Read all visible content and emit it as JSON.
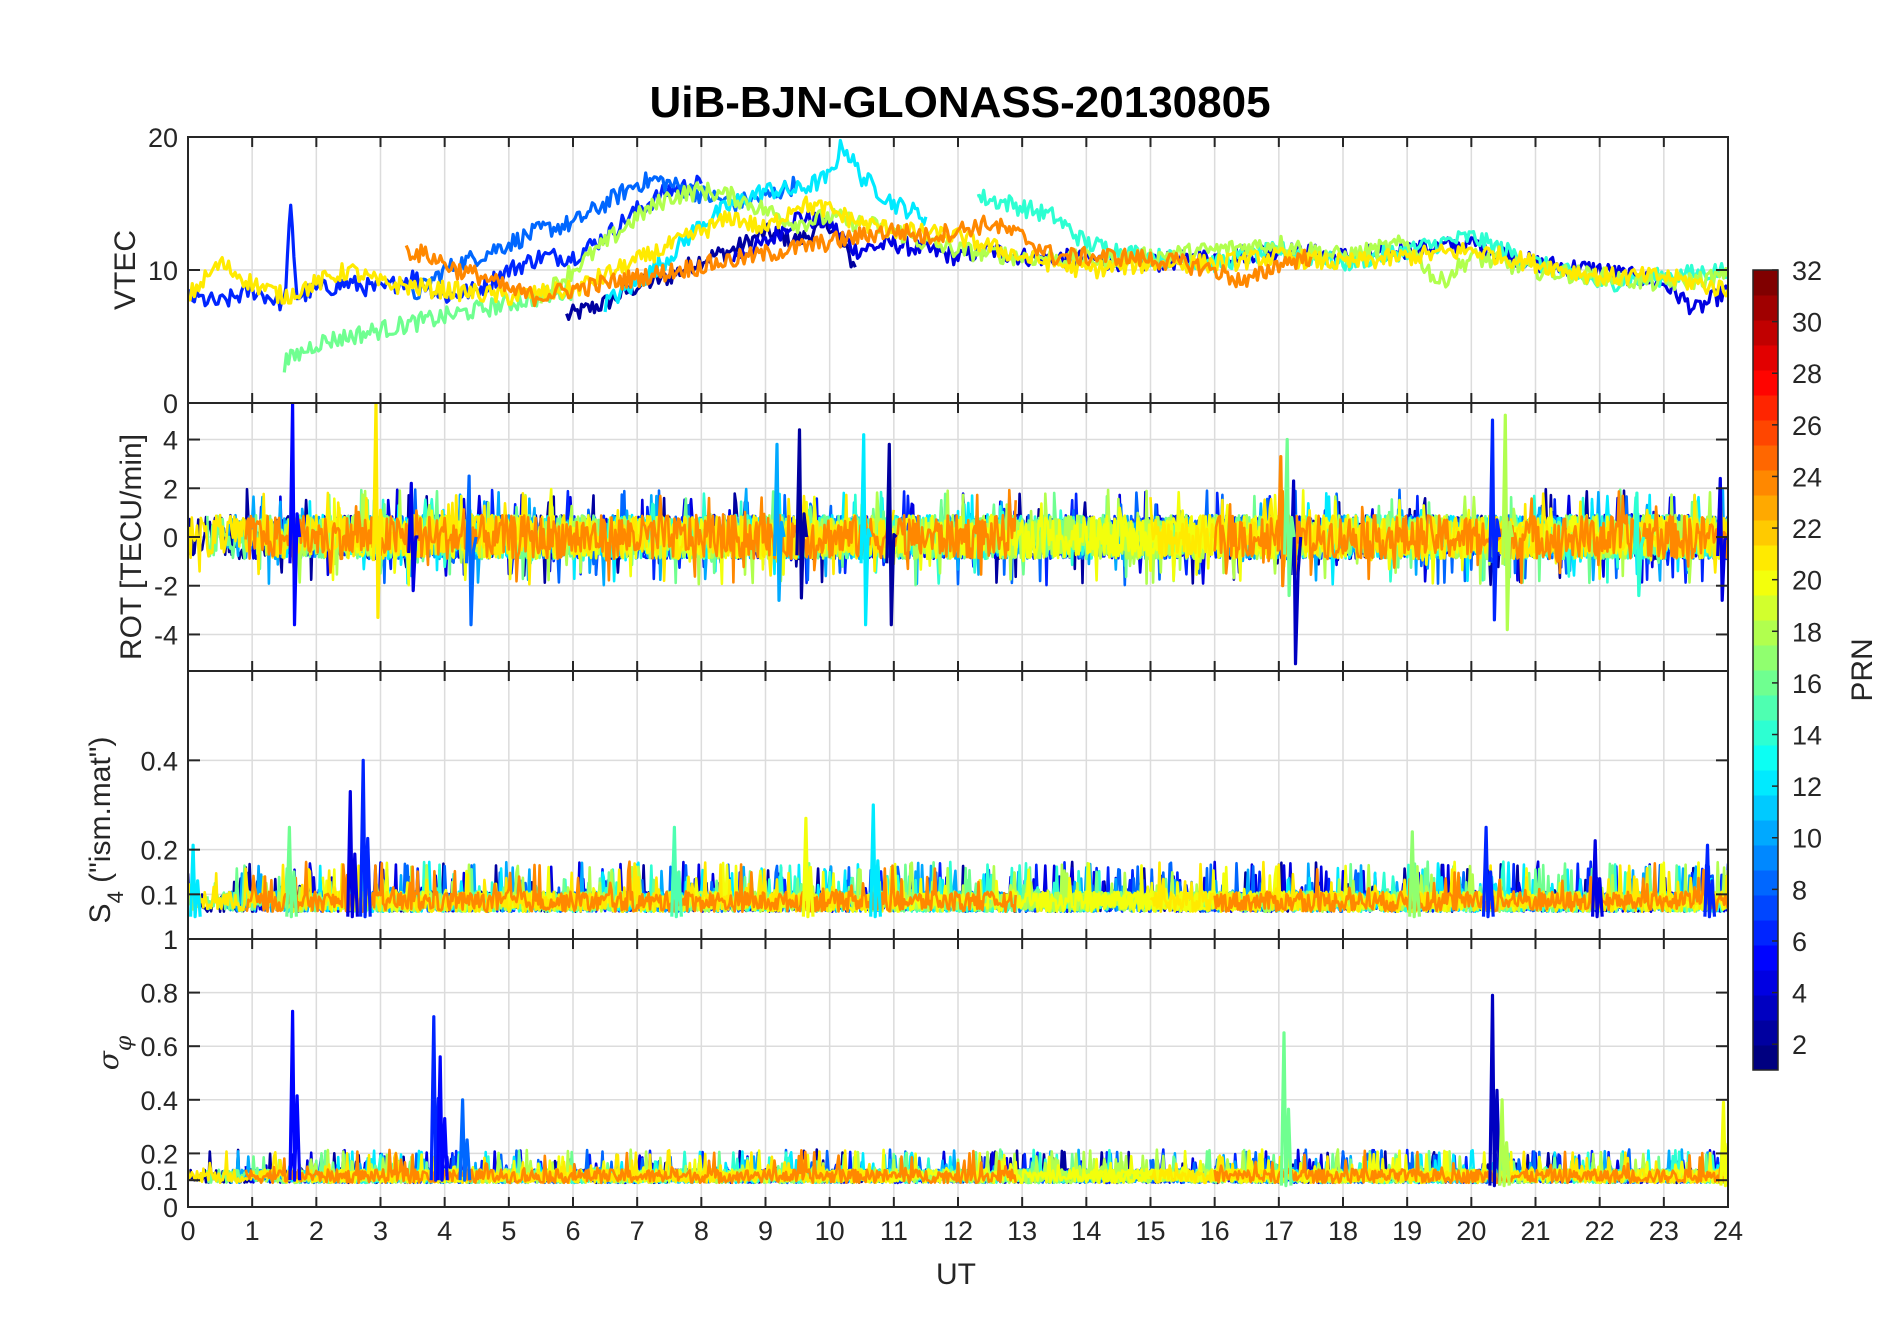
{
  "chart_data": {
    "type": "line",
    "title": "UiB-BJN-GLONASS-20130805",
    "xlabel": "UT",
    "xlim": [
      0,
      24
    ],
    "x_ticks": [
      0,
      1,
      2,
      3,
      4,
      5,
      6,
      7,
      8,
      9,
      10,
      11,
      12,
      13,
      14,
      15,
      16,
      17,
      18,
      19,
      20,
      21,
      22,
      23,
      24
    ],
    "grid": true,
    "colorbar": {
      "label": "PRN",
      "range": [
        1,
        32
      ],
      "colormap": "jet",
      "ticks": [
        2,
        4,
        6,
        8,
        10,
        12,
        14,
        16,
        18,
        20,
        22,
        24,
        26,
        28,
        30,
        32
      ]
    },
    "panels": [
      {
        "ylabel": "VTEC",
        "ylim": [
          0,
          20
        ],
        "y_ticks": [
          10,
          20
        ],
        "traces": [
          {
            "prn": 2,
            "x": [
              5.9,
              6.5,
              7.0,
              7.5,
              8.0,
              8.5,
              9.0,
              9.5,
              10.0,
              10.4
            ],
            "y": [
              6.5,
              7.5,
              8.8,
              9.5,
              10.8,
              11.5,
              12.8,
              12.2,
              13.5,
              10.2
            ]
          },
          {
            "prn": 4,
            "x": [
              8.5,
              9.0,
              9.5,
              10.0,
              10.4,
              11.0,
              11.5,
              12.0,
              12.5,
              13.0,
              14.0,
              15.0,
              16.0,
              17.0,
              18.0,
              19.0,
              20.0,
              21.0,
              22.0,
              23.0,
              23.5,
              24.0
            ],
            "y": [
              11.0,
              12.0,
              14.0,
              13.5,
              11.5,
              12.0,
              11.5,
              11.0,
              11.5,
              11.0,
              10.8,
              10.5,
              11.0,
              11.5,
              11.0,
              11.5,
              12.0,
              10.5,
              10.0,
              9.0,
              7.0,
              8.5
            ]
          },
          {
            "prn": 6,
            "x": [
              0.0,
              0.5,
              1.0,
              1.5,
              1.6,
              1.7,
              2.0,
              2.5,
              3.0,
              3.5,
              4.0,
              4.5,
              5.0,
              5.5,
              6.0,
              6.5,
              7.0,
              7.5,
              8.0
            ],
            "y": [
              8.0,
              7.5,
              8.5,
              7.5,
              14.5,
              8.0,
              8.5,
              9.0,
              8.5,
              9.5,
              8.0,
              8.5,
              10.0,
              11.0,
              11.0,
              12.5,
              14.5,
              16.0,
              16.5
            ]
          },
          {
            "prn": 8,
            "x": [
              3.5,
              4.0,
              4.5,
              5.0,
              5.5,
              6.0,
              6.5,
              7.0,
              7.3,
              7.8,
              8.5,
              9.0,
              9.5
            ],
            "y": [
              8.0,
              10.0,
              11.0,
              12.0,
              13.0,
              13.5,
              15.0,
              16.5,
              16.8,
              16.0,
              15.0,
              15.5,
              16.5
            ]
          },
          {
            "prn": 12,
            "x": [
              6.5,
              7.0,
              7.5,
              8.0,
              8.5,
              9.0,
              9.5,
              10.0,
              10.2,
              10.5,
              11.0,
              11.5
            ],
            "y": [
              7.5,
              9.0,
              11.0,
              13.5,
              15.0,
              16.0,
              16.0,
              17.0,
              19.5,
              17.0,
              15.0,
              14.0
            ]
          },
          {
            "prn": 14,
            "x": [
              12.3,
              12.8,
              13.5,
              14.0,
              15.0,
              16.0,
              17.0,
              18.0,
              19.0,
              20.0,
              21.0,
              22.0,
              23.0,
              24.0
            ],
            "y": [
              15.5,
              15.0,
              14.0,
              12.0,
              11.0,
              10.5,
              11.5,
              10.5,
              11.5,
              12.5,
              10.5,
              9.0,
              9.5,
              10.0
            ]
          },
          {
            "prn": 16,
            "x": [
              1.5,
              2.0,
              2.5,
              3.0,
              3.5,
              4.0,
              4.5,
              5.0,
              5.5,
              6.0
            ],
            "y": [
              3.0,
              4.5,
              5.0,
              5.5,
              6.0,
              6.5,
              7.0,
              7.5,
              8.0,
              8.5
            ]
          },
          {
            "prn": 18,
            "x": [
              5.5,
              6.0,
              6.5,
              7.0,
              7.5,
              8.0,
              8.5,
              9.0,
              9.5,
              10.0,
              10.5,
              11.0,
              11.5,
              12.0,
              13.0,
              14.0,
              15.0,
              16.0,
              17.0,
              18.0,
              19.0,
              19.5,
              20.0,
              21.0,
              22.0,
              23.0,
              24.0
            ],
            "y": [
              8.0,
              10.0,
              12.0,
              14.0,
              15.5,
              16.0,
              15.5,
              14.5,
              13.5,
              14.0,
              13.5,
              13.0,
              12.0,
              11.5,
              11.0,
              10.8,
              11.0,
              11.5,
              12.0,
              11.0,
              12.0,
              9.0,
              11.0,
              10.0,
              9.5,
              9.0,
              9.5
            ]
          },
          {
            "prn": 21,
            "x": [
              0.0,
              0.5,
              1.0,
              1.5,
              2.0,
              2.5,
              3.0,
              4.0,
              5.0,
              6.0,
              8.5,
              9.0,
              9.5,
              10.0,
              10.5,
              11.0,
              12.0,
              13.0,
              14.0,
              15.0,
              16.0,
              17.0,
              18.0,
              19.0,
              20.0,
              21.0,
              22.0,
              23.0,
              24.0
            ],
            "y": [
              8.0,
              10.5,
              9.0,
              8.0,
              9.0,
              10.0,
              9.0,
              8.5,
              8.0,
              8.5,
              14.0,
              13.0,
              15.0,
              14.5,
              13.5,
              13.0,
              12.5,
              11.0,
              10.0,
              10.5,
              10.5,
              11.0,
              10.5,
              11.0,
              11.5,
              10.5,
              9.5,
              9.5,
              8.5
            ]
          },
          {
            "prn": 24,
            "x": [
              3.4,
              3.8,
              4.2,
              4.6,
              5.0,
              5.4,
              11.0,
              11.5,
              12.0,
              12.5,
              13.0,
              13.5,
              14.0,
              14.5,
              15.0,
              15.5,
              16.0,
              16.5,
              17.0,
              17.5
            ],
            "y": [
              11.5,
              11.0,
              10.0,
              9.5,
              8.5,
              8.0,
              13.0,
              12.5,
              13.0,
              13.5,
              12.5,
              11.0,
              11.0,
              11.0,
              10.8,
              10.5,
              10.0,
              9.0,
              10.5,
              11.0
            ]
          }
        ]
      },
      {
        "ylabel": "ROT [TECU/min]",
        "ylim": [
          -5.5,
          5.5
        ],
        "y_ticks": [
          -4,
          -2,
          0,
          2,
          4
        ],
        "top_tick_label": "0",
        "spikes": [
          {
            "prn": 5,
            "x": 1.65,
            "y": [
              -3.6,
              5.5
            ]
          },
          {
            "prn": 21,
            "x": 2.95,
            "y": [
              -3.3,
              5.5
            ]
          },
          {
            "prn": 4,
            "x": 3.5,
            "y": [
              -2.2,
              2.2
            ]
          },
          {
            "prn": 8,
            "x": 4.4,
            "y": [
              -3.6,
              2.5
            ]
          },
          {
            "prn": 10,
            "x": 9.2,
            "y": [
              -2.6,
              3.8
            ]
          },
          {
            "prn": 2,
            "x": 9.55,
            "y": [
              -2.5,
              4.4
            ]
          },
          {
            "prn": 12,
            "x": 10.55,
            "y": [
              -3.6,
              4.2
            ]
          },
          {
            "prn": 2,
            "x": 10.95,
            "y": [
              -3.6,
              3.8
            ]
          },
          {
            "prn": 24,
            "x": 17.05,
            "y": [
              -2.0,
              3.3
            ]
          },
          {
            "prn": 3,
            "x": 17.25,
            "y": [
              -5.2,
              2.3
            ]
          },
          {
            "prn": 16,
            "x": 17.15,
            "y": [
              -2.4,
              4.0
            ]
          },
          {
            "prn": 6,
            "x": 20.35,
            "y": [
              -3.4,
              4.8
            ]
          },
          {
            "prn": 18,
            "x": 20.55,
            "y": [
              -3.8,
              5.0
            ]
          },
          {
            "prn": 14,
            "x": 22.6,
            "y": [
              -2.4,
              1.8
            ]
          },
          {
            "prn": 4,
            "x": 23.9,
            "y": [
              -2.6,
              2.4
            ]
          }
        ]
      },
      {
        "ylabel": "S4 (\"ism.mat\")",
        "ylabel_main": "S",
        "ylabel_sub": "4",
        "ylabel_rest": "(\"ism.mat\")",
        "ylim": [
          0,
          0.6
        ],
        "y_ticks": [
          0.1,
          0.2,
          0.4
        ],
        "spikes": [
          {
            "prn": 6,
            "x": 2.75,
            "y": [
              0.05,
              0.4
            ]
          },
          {
            "prn": 4,
            "x": 2.55,
            "y": [
              0.05,
              0.33
            ]
          },
          {
            "prn": 16,
            "x": 1.6,
            "y": [
              0.05,
              0.25
            ]
          },
          {
            "prn": 12,
            "x": 0.1,
            "y": [
              0.05,
              0.21
            ]
          },
          {
            "prn": 20,
            "x": 9.65,
            "y": [
              0.05,
              0.27
            ]
          },
          {
            "prn": 12,
            "x": 10.7,
            "y": [
              0.05,
              0.3
            ]
          },
          {
            "prn": 15,
            "x": 7.6,
            "y": [
              0.05,
              0.25
            ]
          },
          {
            "prn": 6,
            "x": 20.25,
            "y": [
              0.05,
              0.25
            ]
          },
          {
            "prn": 4,
            "x": 21.95,
            "y": [
              0.05,
              0.22
            ]
          },
          {
            "prn": 6,
            "x": 23.7,
            "y": [
              0.05,
              0.21
            ]
          },
          {
            "prn": 17,
            "x": 19.1,
            "y": [
              0.05,
              0.24
            ]
          }
        ]
      },
      {
        "ylabel": "σφ",
        "ylim": [
          0,
          1
        ],
        "y_ticks": [
          0,
          0.1,
          0.2,
          0.4,
          0.6,
          0.8
        ],
        "top_tick_label": "1",
        "spikes": [
          {
            "prn": 5,
            "x": 1.65,
            "y": [
              0.1,
              0.73
            ]
          },
          {
            "prn": 6,
            "x": 3.85,
            "y": [
              0.1,
              0.71
            ]
          },
          {
            "prn": 5,
            "x": 3.95,
            "y": [
              0.1,
              0.56
            ]
          },
          {
            "prn": 8,
            "x": 4.3,
            "y": [
              0.1,
              0.4
            ]
          },
          {
            "prn": 16,
            "x": 17.1,
            "y": [
              0.08,
              0.65
            ]
          },
          {
            "prn": 3,
            "x": 20.35,
            "y": [
              0.08,
              0.79
            ]
          },
          {
            "prn": 18,
            "x": 20.5,
            "y": [
              0.08,
              0.4
            ]
          },
          {
            "prn": 20,
            "x": 23.95,
            "y": [
              0.08,
              0.39
            ]
          }
        ]
      }
    ]
  }
}
